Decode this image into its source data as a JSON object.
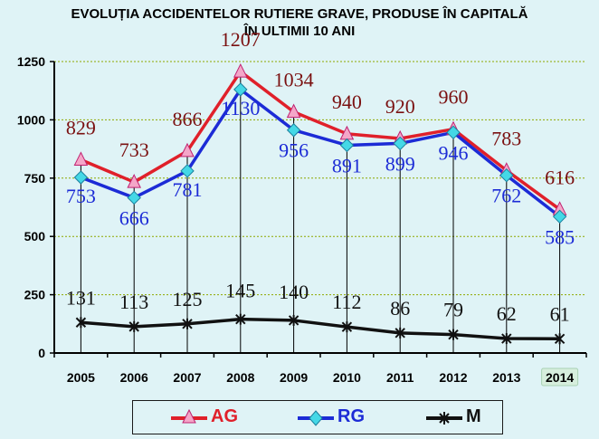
{
  "chart_data": {
    "type": "line",
    "title": "EVOLUȚIA ACCIDENTELOR  RUTIERE GRAVE,  PRODUSE ÎN CAPITALĂ",
    "subtitle": "ÎN ULTIMII 10 ANI",
    "categories": [
      "2005",
      "2006",
      "2007",
      "2008",
      "2009",
      "2010",
      "2011",
      "2012",
      "2013",
      "2014"
    ],
    "highlighted_category": "2014",
    "ylim": [
      0,
      1250
    ],
    "yticks": [
      "0",
      "250",
      "500",
      "750",
      "1000",
      "1250"
    ],
    "ytick_values": [
      0,
      250,
      500,
      750,
      1000,
      1250
    ],
    "grid": "horizontal dotted",
    "legend_position": "bottom",
    "series": [
      {
        "name": "AG",
        "color": "#e0202a",
        "label_color": "#7a1010",
        "marker": "triangle",
        "values": [
          829,
          733,
          866,
          1207,
          1034,
          940,
          920,
          960,
          783,
          616
        ],
        "labels": [
          "829",
          "733",
          "866",
          "1207",
          "1034",
          "940",
          "920",
          "960",
          "783",
          "616"
        ]
      },
      {
        "name": "RG",
        "color": "#1c2bd6",
        "label_color": "#1c2bd6",
        "marker": "diamond",
        "values": [
          753,
          666,
          781,
          1130,
          956,
          891,
          899,
          946,
          762,
          585
        ],
        "labels": [
          "753",
          "666",
          "781",
          "1130",
          "956",
          "891",
          "899",
          "946",
          "762",
          "585"
        ]
      },
      {
        "name": "M",
        "color": "#111111",
        "label_color": "#111111",
        "marker": "star",
        "values": [
          131,
          113,
          125,
          145,
          140,
          112,
          86,
          79,
          62,
          61
        ],
        "labels": [
          "131",
          "113",
          "125",
          "145",
          "140",
          "112",
          "86",
          "79",
          "62",
          "61"
        ]
      }
    ]
  }
}
